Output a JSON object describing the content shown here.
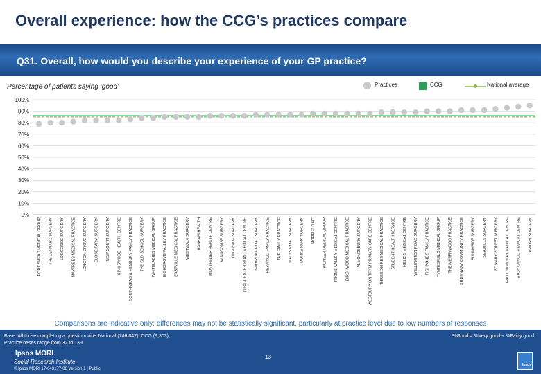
{
  "header": {
    "title": "Overall experience: how the CCG’s practices compare",
    "question": "Q31. Overall, how would you describe your experience of your GP practice?",
    "subtitle": "Percentage of patients saying ‘good’"
  },
  "legend": {
    "practices": "Practices",
    "ccg": "CCG",
    "national": "National average"
  },
  "colors": {
    "practices_marker": "#c9c9c9",
    "ccg": "#2e9e5b",
    "national": "#8ab55e",
    "title": "#1f3864",
    "band": "#1f4f8f"
  },
  "chart_data": {
    "type": "scatter",
    "ylim": [
      0,
      100
    ],
    "yticks": [
      "0%",
      "10%",
      "20%",
      "30%",
      "40%",
      "50%",
      "60%",
      "70%",
      "80%",
      "90%",
      "100%"
    ],
    "categories": [
      "PORTISHEAD MEDICAL GROUP",
      "THE LENNARD SURGERY",
      "LODGESIDE SURGERY",
      "MAYTREES MEDICAL PRACTICE",
      "LONGTON GROVE SURGERY",
      "CLOSE FARM SURGERY",
      "NEW COURT SURGERY",
      "KINGSWOOD HEALTH CENTRE",
      "SOUTHMEAD & HENBURY FAMILY PRACTICE",
      "THE OLD SCHOOL SURGERY",
      "WHITELADIES MEDICAL GROUP",
      "HIGHGROVE VALLEY PRACTICE",
      "EASTVILLE MEDICAL PRACTICE",
      "WESTWALK SURGERY",
      "HANHAM HEALTH",
      "MONTPELIER HEALTH CENTRE",
      "WINSCOMBE SURGERY",
      "COURTSIDE SURGERY",
      "GLOUCESTER ROAD MEDICAL CENTRE",
      "PEMBROKE ROAD SURGERY",
      "HEYWOOD FAMILY PRACTICE",
      "THE FAMILY PRACTICE",
      "WELLS ROAD SURGERY",
      "MONKS PARK SURGERY",
      "HORFIELD HC",
      "PIONEER MEDICAL GROUP",
      "FROME VALLEY MEDICAL CENTRE",
      "BIRCHWOOD MEDICAL PRACTICE",
      "ALMONDSBURY SURGERY",
      "WESTBURY ON TRYM PRIMARY CARE CENTRE",
      "THREE SHIRES MEDICAL PRACTICE",
      "STUDENT HEALTH SERVICE",
      "HELIOS MEDICAL CENTRE",
      "WELLINGTON ROAD SURGERY",
      "FISHPONDS FAMILY PRACTICE",
      "TYNTESFIELD MEDICAL GROUP",
      "THE MERRYWOOD PRACTICE",
      "GREENWAY COMMUNITY PRACTICE",
      "SUNNYSIDE SURGERY",
      "SEA MILLS SURGERY",
      "ST MARY STREET SURGERY",
      "FALLODON WAY MEDICAL CENTRE",
      "STOCKWOOD MEDICAL CENTRE",
      "PRIORY SURGERY"
    ],
    "practices_values": [
      79,
      80,
      80,
      81,
      82,
      82,
      82,
      82,
      83,
      84,
      84,
      85,
      85,
      85,
      85,
      86,
      86,
      86,
      86,
      87,
      87,
      87,
      87,
      87,
      88,
      88,
      88,
      88,
      88,
      88,
      89,
      89,
      89,
      89,
      90,
      90,
      90,
      91,
      91,
      91,
      92,
      93,
      94,
      95
    ],
    "ccg_value": 86,
    "national_value": 85
  },
  "footer": {
    "comparison_note": "Comparisons are indicative only: differences may not be statistically significant, particularly at practice level due to low numbers of responses",
    "base_line1": "Base: All those completing a questionnaire: National (746,847); CCG (9,303);",
    "base_line2": "Practice bases range from 32 to 139",
    "definition": "%Good = %Very good + %Fairly good",
    "page_number": "13",
    "brand_name": "Ipsos MORI",
    "brand_division": "Social Research Institute",
    "copyright": "© Ipsos MORI    17-043177-06 Version 1 | Public",
    "logo_text": "Ipsos"
  }
}
